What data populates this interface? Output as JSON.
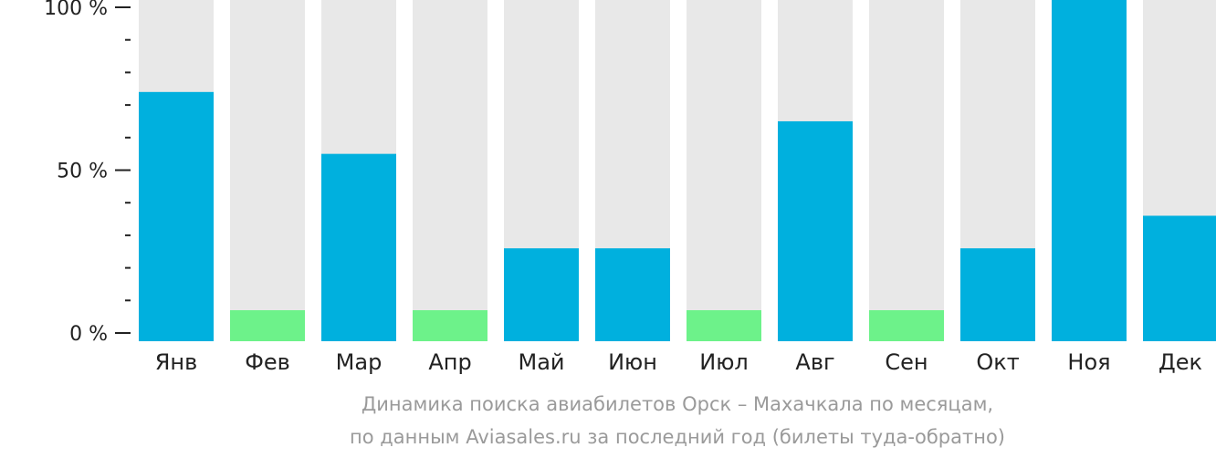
{
  "chart_data": {
    "type": "bar",
    "categories": [
      "Янв",
      "Фев",
      "Мар",
      "Апр",
      "Май",
      "Июн",
      "Июл",
      "Авг",
      "Сен",
      "Окт",
      "Ноя",
      "Дек"
    ],
    "values": [
      74,
      7,
      55,
      7,
      26,
      26,
      7,
      65,
      7,
      26,
      100,
      36
    ],
    "y_ticks": [
      "0 %",
      "50 %",
      "100 %"
    ],
    "ylim": [
      0,
      100
    ],
    "grid": false,
    "caption": [
      "Динамика поиска авиабилетов Орск – Махачкала по месяцам,",
      "по данным Aviasales.ru за последний год (билеты туда-обратно)"
    ],
    "colors": {
      "bar_high": "#00b0de",
      "bar_low": "#6df28a",
      "bar_background": "#e8e8e8",
      "axis": "#222222"
    }
  }
}
